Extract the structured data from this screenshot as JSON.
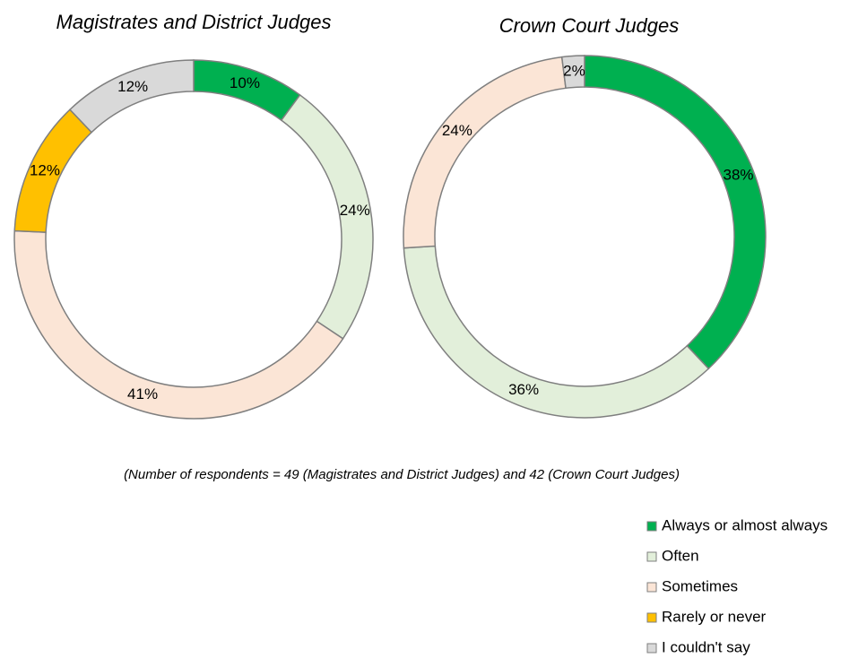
{
  "chart_data": [
    {
      "type": "donut",
      "title": "Magistrates and District Judges",
      "categories": [
        "Always or almost always",
        "Often",
        "Sometimes",
        "Rarely or never",
        "I couldn't say"
      ],
      "values": [
        10,
        24,
        41,
        12,
        12
      ],
      "value_labels": [
        "10%",
        "24%",
        "41%",
        "12%",
        "12%"
      ],
      "colors": [
        "#00b050",
        "#e2efda",
        "#fbe5d6",
        "#ffc000",
        "#d9d9d9"
      ]
    },
    {
      "type": "donut",
      "title": "Crown Court Judges",
      "categories": [
        "Always or almost always",
        "Often",
        "Sometimes",
        "I couldn't say"
      ],
      "values": [
        38,
        36,
        24,
        2
      ],
      "value_labels": [
        "38%",
        "36%",
        "24%",
        "2%"
      ],
      "colors": [
        "#00b050",
        "#e2efda",
        "#fbe5d6",
        "#d9d9d9"
      ]
    }
  ],
  "footnote": "(Number of respondents = 49 (Magistrates and District Judges) and 42 (Crown Court Judges)"
}
